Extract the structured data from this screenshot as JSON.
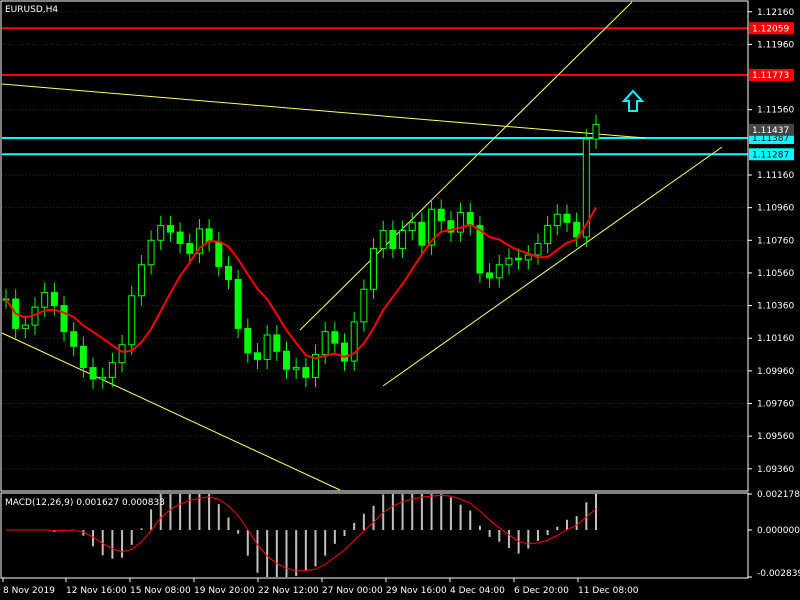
{
  "chart_data": [
    {
      "type": "candlestick",
      "title": "EURUSD,H4",
      "y_ticks": [
        "1.12160",
        "1.11960",
        "1.11560",
        "1.11160",
        "1.10960",
        "1.10760",
        "1.10560",
        "1.10360",
        "1.10160",
        "1.09960",
        "1.09760",
        "1.09560",
        "1.09360"
      ],
      "x_tick_labels": [
        "8 Nov 2019",
        "12 Nov 16:00",
        "15 Nov 08:00",
        "19 Nov 20:00",
        "22 Nov 12:00",
        "27 Nov 00:00",
        "29 Nov 16:00",
        "4 Dec 04:00",
        "6 Dec 20:00",
        "11 Dec 08:00"
      ],
      "candle_color": "#00ff00",
      "price_range": [
        1.0923,
        1.1222
      ],
      "closes": [
        1.104,
        1.1022,
        1.1024,
        1.1035,
        1.1044,
        1.1036,
        1.102,
        1.1011,
        1.0998,
        1.0991,
        1.0992,
        1.1001,
        1.1012,
        1.1042,
        1.1061,
        1.1076,
        1.1085,
        1.1081,
        1.1074,
        1.1068,
        1.1083,
        1.1075,
        1.106,
        1.1052,
        1.1022,
        1.1007,
        1.1003,
        1.1018,
        1.1008,
        1.0997,
        1.0998,
        1.0992,
        1.1006,
        1.102,
        1.1013,
        1.1002,
        1.1026,
        1.1046,
        1.1071,
        1.1082,
        1.1071,
        1.1082,
        1.1087,
        1.1073,
        1.1095,
        1.1088,
        1.1081,
        1.1093,
        1.1085,
        1.1056,
        1.1053,
        1.1061,
        1.1065,
        1.1064,
        1.1067,
        1.1074,
        1.1085,
        1.1092,
        1.1087,
        1.1078,
        1.1138,
        1.1147
      ],
      "horizontal_levels": [
        {
          "price": "1.12059",
          "color": "#ff0000"
        },
        {
          "price": "1.11773",
          "color": "#ff0000"
        },
        {
          "price": "1.11387",
          "color": "#00ffff"
        },
        {
          "price": "1.11287",
          "color": "#00ffff"
        }
      ],
      "current_price": "1.11437",
      "moving_average_color": "#ff0000",
      "trendline_color": "#ffff66",
      "arrow_color": "#00ffff"
    },
    {
      "type": "bar",
      "title": "MACD(12,26,9) 0.001627 0.000833",
      "y_ticks": [
        "0.002178",
        "0.000000",
        "-0.002839"
      ],
      "value_range": [
        -0.002839,
        0.002178
      ],
      "histogram_color": "#c0c0c0",
      "signal_color": "#ff0000"
    }
  ]
}
